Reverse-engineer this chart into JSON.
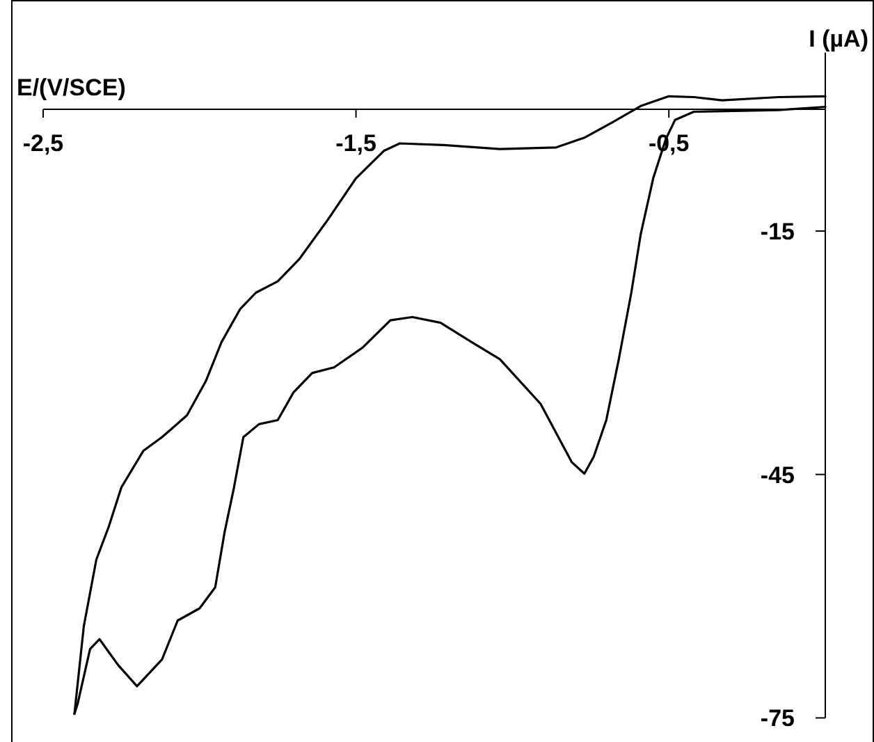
{
  "chart_data": {
    "type": "line",
    "xlabel": "E/(V/SCE)",
    "ylabel": "I (µA)",
    "xlim": [
      -2.5,
      0
    ],
    "ylim": [
      -75,
      7
    ],
    "xticks": [
      {
        "value": -2.5,
        "label": "-2,5"
      },
      {
        "value": -1.5,
        "label": "-1,5"
      },
      {
        "value": -0.5,
        "label": "-0,5"
      }
    ],
    "yticks": [
      -15,
      -45,
      -75
    ],
    "series": [
      {
        "color": "#000000",
        "x": [
          -2.4,
          -2.37,
          -2.33,
          -2.29,
          -2.25,
          -2.18,
          -2.12,
          -2.04,
          -1.98,
          -1.93,
          -1.87,
          -1.82,
          -1.75,
          -1.68,
          -1.59,
          -1.5,
          -1.41,
          -1.36,
          -1.22,
          -1.04,
          -0.86,
          -0.77,
          -0.68,
          -0.59,
          -0.5,
          -0.42,
          -0.33,
          -0.15,
          0
        ],
        "values": [
          -74.5,
          -63.7,
          -55.5,
          -51.4,
          -46.6,
          -42.1,
          -40.4,
          -37.7,
          -33.5,
          -28.7,
          -24.6,
          -22.6,
          -21.2,
          -18.4,
          -13.6,
          -8.5,
          -5.1,
          -4.2,
          -4.4,
          -4.9,
          -4.7,
          -3.5,
          -1.6,
          0.4,
          1.6,
          1.5,
          1.1,
          1.5,
          1.6
        ]
      },
      {
        "color": "#000000",
        "x": [
          0,
          -0.15,
          -0.42,
          -0.48,
          -0.51,
          -0.55,
          -0.59,
          -0.62,
          -0.66,
          -0.7,
          -0.74,
          -0.77,
          -0.81,
          -0.91,
          -1.04,
          -1.13,
          -1.23,
          -1.32,
          -1.39,
          -1.48,
          -1.57,
          -1.64,
          -1.7,
          -1.75,
          -1.81,
          -1.86,
          -1.89,
          -1.92,
          -1.95,
          -2,
          -2.07,
          -2.12,
          -2.2,
          -2.26,
          -2.32,
          -2.35,
          -2.39,
          -2.4
        ],
        "values": [
          0.3,
          -0.1,
          -0.3,
          -1.3,
          -3.7,
          -8.5,
          -15.4,
          -22.6,
          -30.8,
          -38.3,
          -42.8,
          -44.9,
          -43.5,
          -36.3,
          -30.8,
          -28.7,
          -26.3,
          -25.6,
          -26,
          -29.4,
          -31.8,
          -32.5,
          -34.9,
          -38.3,
          -38.8,
          -40.4,
          -46.6,
          -52.1,
          -58.9,
          -61.5,
          -63,
          -67.8,
          -71.1,
          -68.5,
          -65.3,
          -66.5,
          -73.3,
          -74.5
        ]
      }
    ]
  }
}
